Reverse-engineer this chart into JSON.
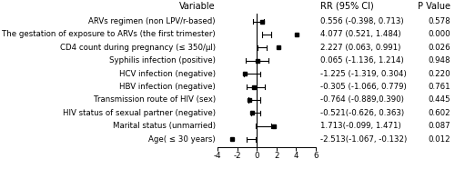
{
  "variables": [
    "ARVs regimen (non LPV/r-based)",
    "The gestation of exposure to ARVs (the first trimester)",
    "CD4 count during pregnancy (≤ 350/μl)",
    "Syphilis infection (positive)",
    "HCV infection (negative)",
    "HBV infection (negative)",
    "Transmission route of HIV (sex)",
    "HIV status of sexual partner (negative)",
    "Marital status (unmarried)",
    "Age( ≤ 30 years)"
  ],
  "estimates": [
    0.556,
    4.077,
    2.227,
    0.065,
    -1.225,
    -0.305,
    -0.764,
    -0.521,
    1.713,
    -2.513
  ],
  "ci_lower": [
    -0.398,
    0.521,
    0.063,
    -1.136,
    -1.319,
    -1.066,
    -0.889,
    -0.626,
    -0.099,
    -1.067
  ],
  "ci_upper": [
    0.713,
    1.484,
    0.991,
    1.214,
    0.304,
    0.779,
    0.39,
    0.363,
    1.471,
    -0.132
  ],
  "p_values": [
    "0.578",
    "0.000",
    "0.026",
    "0.948",
    "0.220",
    "0.761",
    "0.445",
    "0.602",
    "0.087",
    "0.012"
  ],
  "rr_labels": [
    "0.556 (-0.398, 0.713)",
    "4.077 (0.521, 1.484)",
    "2.227 (0.063, 0.991)",
    "0.065 (-1.136, 1.214)",
    "-1.225 (-1.319, 0.304)",
    "-0.305 (-1.066, 0.779)",
    "-0.764 (-0.889,0.390)",
    "-0.521(-0.626, 0.363)",
    "1.713(-0.099, 1.471)",
    "-2.513(-1.067, -0.132)"
  ],
  "header_variable": "Variable",
  "header_rr": "RR (95% CI)",
  "header_p": "P Value",
  "xlim": [
    -4,
    6
  ],
  "xticks": [
    -4,
    -2,
    0,
    2,
    4,
    6
  ],
  "vline_x": 0,
  "marker_color": "black",
  "line_color": "black",
  "bg_color": "white",
  "fontsize": 6.2,
  "header_fontsize": 7.0
}
